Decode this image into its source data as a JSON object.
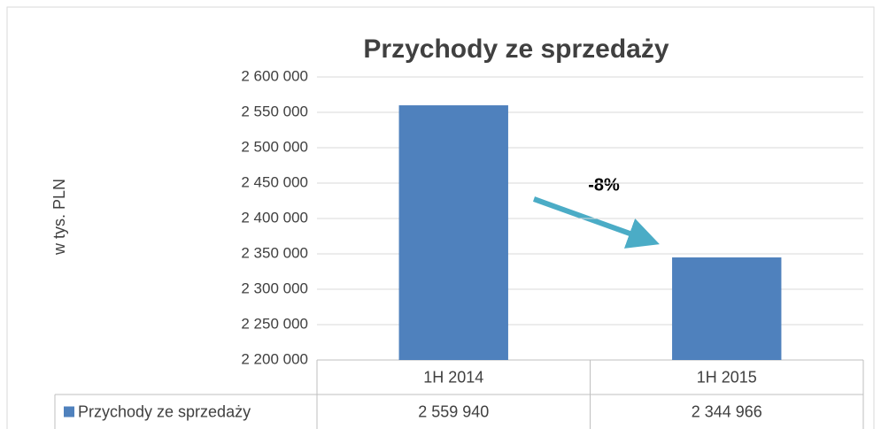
{
  "chart_data": {
    "type": "bar",
    "title": "Przychody ze sprzedaży",
    "y_label": "w tys. PLN",
    "annotation": "-8%",
    "categories": [
      "1H 2014",
      "1H 2015"
    ],
    "series": [
      {
        "name": "Przychody ze sprzedaży",
        "color": "#4f81bd",
        "values": [
          2559940,
          2344966
        ],
        "value_labels": [
          "2 559 940",
          "2 344 966"
        ]
      }
    ],
    "ylim": [
      2200000,
      2600000
    ],
    "yticks": [
      {
        "value": 2200000,
        "label": "2 200 000"
      },
      {
        "value": 2250000,
        "label": "2 250 000"
      },
      {
        "value": 2300000,
        "label": "2 300 000"
      },
      {
        "value": 2350000,
        "label": "2 350 000"
      },
      {
        "value": 2400000,
        "label": "2 400 000"
      },
      {
        "value": 2450000,
        "label": "2 450 000"
      },
      {
        "value": 2500000,
        "label": "2 500 000"
      },
      {
        "value": 2550000,
        "label": "2 550 000"
      },
      {
        "value": 2600000,
        "label": "2 600 000"
      }
    ],
    "grid": true
  }
}
